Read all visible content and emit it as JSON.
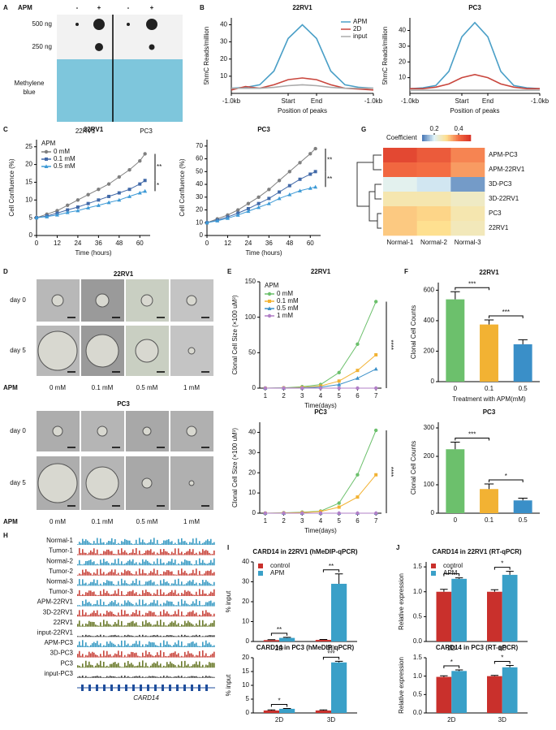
{
  "panel_labels": [
    "A",
    "B",
    "C",
    "D",
    "E",
    "F",
    "G",
    "H",
    "I",
    "J"
  ],
  "panel_a": {
    "treatment_label": "APM",
    "signs": [
      "-",
      "+",
      "-",
      "+"
    ],
    "amounts": [
      "500 ng",
      "250 ng"
    ],
    "stain_label_lines": [
      "Methylene",
      "blue"
    ],
    "cell_lines": [
      "22RV1",
      "PC3"
    ]
  },
  "panel_d": {
    "cell_lines": [
      "22RV1",
      "PC3"
    ],
    "days": [
      "day 0",
      "day 5"
    ],
    "treatment_label": "APM",
    "doses": [
      "0 mM",
      "0.1 mM",
      "0.5 mM",
      "1 mM"
    ]
  },
  "panel_h": {
    "tracks": [
      "Normal-1",
      "Tumor-1",
      "Normal-2",
      "Tumor-2",
      "Normal-3",
      "Tumor-3",
      "APM-22RV1",
      "3D-22RV1",
      "22RV1",
      "input-22RV1",
      "APM-PC3",
      "3D-PC3",
      "PC3",
      "input-PC3"
    ],
    "gene": "CARD14"
  },
  "chart_data": [
    {
      "type": "line",
      "title": "22RV1",
      "x": [
        0,
        10,
        20,
        30,
        40,
        50,
        60,
        70,
        80,
        90,
        100
      ],
      "xlim": [
        0,
        100
      ],
      "xticks": [
        {
          "value": 0,
          "label": "-1.0kb"
        },
        {
          "value": 40,
          "label": "Start"
        },
        {
          "value": 60,
          "label": "End"
        },
        {
          "value": 100,
          "label": "-1.0kb"
        }
      ],
      "ylim": [
        0,
        44
      ],
      "yticks": [
        10,
        20,
        30,
        40
      ],
      "xlabel": "Position of peaks",
      "ylabel": "5hmC Reads/million",
      "legend": "upper right",
      "series": [
        {
          "name": "APM",
          "color": "#4a9fc7",
          "values": [
            3,
            3.5,
            5,
            13,
            32,
            40,
            32,
            13,
            5,
            3.5,
            3
          ]
        },
        {
          "name": "2D",
          "color": "#c9463d",
          "values": [
            2,
            4,
            3,
            5,
            8,
            9,
            8,
            5,
            3,
            2.5,
            2
          ]
        },
        {
          "name": "input",
          "color": "#aaaaaa",
          "values": [
            3,
            3,
            3,
            3.5,
            4.5,
            5,
            4.5,
            3.5,
            3,
            3,
            3
          ]
        }
      ]
    },
    {
      "type": "line",
      "title": "PC3",
      "x": [
        0,
        10,
        20,
        30,
        40,
        50,
        60,
        70,
        80,
        90,
        100
      ],
      "xlim": [
        0,
        100
      ],
      "xticks": [
        {
          "value": 0,
          "label": "-1.0kb"
        },
        {
          "value": 40,
          "label": "Start"
        },
        {
          "value": 60,
          "label": "End"
        },
        {
          "value": 100,
          "label": "-1.0kb"
        }
      ],
      "ylim": [
        0,
        48
      ],
      "yticks": [
        10,
        20,
        30,
        40
      ],
      "xlabel": "Position of peaks",
      "ylabel": "5hmC Reads/million",
      "series": [
        {
          "color": "#4a9fc7",
          "values": [
            3,
            3.5,
            5,
            14,
            36,
            45,
            36,
            14,
            5,
            3.5,
            3
          ]
        },
        {
          "color": "#c9463d",
          "values": [
            3,
            3,
            4,
            6,
            10,
            12,
            10,
            6,
            4,
            3,
            3
          ]
        },
        {
          "color": "#aaaaaa",
          "values": [
            2,
            2,
            2,
            2,
            2,
            2,
            2,
            2,
            2,
            2,
            2
          ]
        }
      ]
    },
    {
      "type": "line",
      "title": "22RV1",
      "x": [
        0,
        6,
        12,
        18,
        24,
        30,
        36,
        42,
        48,
        54,
        60,
        63
      ],
      "xlim": [
        0,
        66
      ],
      "xticks": [
        0,
        12,
        24,
        36,
        48,
        60
      ],
      "ylim": [
        0,
        27
      ],
      "yticks": [
        0,
        5,
        10,
        15,
        20,
        25
      ],
      "xlabel": "Time (hours)",
      "ylabel": "Cell Confluence (%)",
      "legend": "upper left",
      "legend_title": "APM",
      "markers": true,
      "annotations": [
        "**",
        "*"
      ],
      "series": [
        {
          "name": "0 mM",
          "color": "#7f7f7f",
          "marker": "circle",
          "values": [
            5,
            6,
            7,
            8.5,
            10,
            11.5,
            13,
            14.5,
            16.5,
            18.5,
            21,
            23
          ]
        },
        {
          "name": "0.1 mM",
          "color": "#4169a8",
          "marker": "square",
          "values": [
            5,
            5.5,
            6.3,
            7.2,
            8,
            9,
            10,
            11,
            12,
            13,
            14.5,
            15.5
          ]
        },
        {
          "name": "0.5 mM",
          "color": "#3d9ad6",
          "marker": "triangle",
          "values": [
            5,
            5.3,
            5.8,
            6.5,
            7,
            7.8,
            8.5,
            9.3,
            10,
            11,
            12,
            12.5
          ]
        }
      ]
    },
    {
      "type": "line",
      "title": "PC3",
      "x": [
        0,
        6,
        12,
        18,
        24,
        30,
        36,
        42,
        48,
        54,
        60,
        63
      ],
      "xlim": [
        0,
        66
      ],
      "xticks": [
        0,
        12,
        24,
        36,
        48,
        60
      ],
      "ylim": [
        0,
        75
      ],
      "yticks": [
        0,
        10,
        20,
        30,
        40,
        50,
        60,
        70
      ],
      "xlabel": "Time (hours)",
      "ylabel": "Cell Confluence (%)",
      "markers": true,
      "annotations": [
        "**",
        "**"
      ],
      "series": [
        {
          "color": "#7f7f7f",
          "marker": "circle",
          "values": [
            10,
            13,
            16,
            20,
            25,
            30,
            36,
            43,
            50,
            57,
            64,
            68
          ]
        },
        {
          "color": "#4169a8",
          "marker": "square",
          "values": [
            10,
            12,
            14.5,
            17.5,
            21,
            25,
            29,
            34,
            39,
            44,
            48,
            50
          ]
        },
        {
          "color": "#3d9ad6",
          "marker": "triangle",
          "values": [
            10,
            11.5,
            13.5,
            16,
            19,
            22,
            25,
            29,
            32,
            35,
            37,
            38
          ]
        }
      ]
    },
    {
      "type": "heatmap",
      "colorbar_label": "Coefficient",
      "clim": [
        0.1,
        0.5
      ],
      "colorbar_ticks": [
        0.2,
        0.4
      ],
      "colors": [
        "#4575b4",
        "#e0f3f8",
        "#fee090",
        "#f46d43",
        "#d73027"
      ],
      "rows": [
        "APM-PC3",
        "APM-22RV1",
        "3D-PC3",
        "3D-22RV1",
        "PC3",
        "22RV1"
      ],
      "columns": [
        "Normal-1",
        "Normal-2",
        "Normal-3"
      ],
      "values": [
        [
          0.46,
          0.43,
          0.38
        ],
        [
          0.41,
          0.4,
          0.36
        ],
        [
          0.21,
          0.19,
          0.13
        ],
        [
          0.27,
          0.27,
          0.25
        ],
        [
          0.32,
          0.31,
          0.27
        ],
        [
          0.32,
          0.3,
          0.26
        ]
      ]
    },
    {
      "type": "line",
      "title": "22RV1",
      "x": [
        1,
        2,
        3,
        4,
        5,
        6,
        7
      ],
      "xlim": [
        0.7,
        7.3
      ],
      "xticks": [
        1,
        2,
        3,
        4,
        5,
        6,
        7
      ],
      "ylim": [
        0,
        150
      ],
      "yticks": [
        0,
        50,
        100,
        150
      ],
      "xlabel": "Time(days)",
      "ylabel": "Clonal Cell Size (×100 uM³)",
      "legend": "upper left",
      "legend_title": "APM",
      "markers": true,
      "annotations": [
        "****"
      ],
      "series": [
        {
          "name": "0 mM",
          "color": "#6cc06c",
          "marker": "circle",
          "values": [
            0,
            0.5,
            2,
            5,
            22,
            62,
            122
          ]
        },
        {
          "name": "0.1 mM",
          "color": "#f2b233",
          "marker": "square",
          "values": [
            0,
            0.3,
            1,
            3,
            10,
            25,
            47
          ]
        },
        {
          "name": "0.5 mM",
          "color": "#3a8fc8",
          "marker": "triangle",
          "values": [
            0,
            0.2,
            0.5,
            1.5,
            5,
            14,
            27
          ]
        },
        {
          "name": "1 mM",
          "color": "#b17fc7",
          "marker": "circle",
          "values": [
            0,
            0,
            0,
            0,
            0,
            0,
            0
          ]
        }
      ]
    },
    {
      "type": "line",
      "title": "PC3",
      "x": [
        1,
        2,
        3,
        4,
        5,
        6,
        7
      ],
      "xlim": [
        0.7,
        7.3
      ],
      "xticks": [
        1,
        2,
        3,
        4,
        5,
        6,
        7
      ],
      "ylim": [
        0,
        45
      ],
      "yticks": [
        0,
        10,
        20,
        30,
        40
      ],
      "xlabel": "Time(days)",
      "ylabel": "Clonal Cell Size (×100 uM³)",
      "markers": true,
      "annotations": [
        "****"
      ],
      "series": [
        {
          "color": "#6cc06c",
          "marker": "circle",
          "values": [
            0,
            0.2,
            0.5,
            1,
            5,
            19,
            41
          ]
        },
        {
          "color": "#f2b233",
          "marker": "square",
          "values": [
            0,
            0.1,
            0.3,
            0.8,
            3,
            8,
            19
          ]
        },
        {
          "color": "#3a8fc8",
          "marker": "triangle",
          "values": [
            0,
            0,
            0,
            0,
            0,
            0,
            0
          ]
        },
        {
          "color": "#b17fc7",
          "marker": "circle",
          "values": [
            0,
            0,
            0,
            0,
            0,
            0,
            0
          ]
        }
      ]
    },
    {
      "type": "bar",
      "title": "22RV1",
      "categories": [
        "0",
        "0.1",
        "0.5"
      ],
      "values": [
        540,
        375,
        245
      ],
      "errors": [
        50,
        30,
        30
      ],
      "colors": [
        "#6cc06c",
        "#f2b233",
        "#3a8fc8"
      ],
      "ylim": [
        0,
        650
      ],
      "yticks": [
        0,
        200,
        400,
        600
      ],
      "ylabel": "Clonal Cell Counts",
      "xlabel": "Treatment with APM(mM)",
      "annotations": [
        "***",
        "***"
      ]
    },
    {
      "type": "bar",
      "title": "PC3",
      "categories": [
        "0",
        "0.1",
        "0.5"
      ],
      "values": [
        225,
        85,
        45
      ],
      "errors": [
        25,
        18,
        8
      ],
      "colors": [
        "#6cc06c",
        "#f2b233",
        "#3a8fc8"
      ],
      "ylim": [
        0,
        320
      ],
      "yticks": [
        0,
        100,
        200,
        300
      ],
      "ylabel": "Clonal Cell Counts",
      "annotations": [
        "***",
        "*"
      ]
    },
    {
      "type": "bar",
      "title": "CARD14 in 22RV1 (hMeDIP-qPCR)",
      "categories": [
        "2D",
        "3D"
      ],
      "ylim": [
        0,
        40
      ],
      "yticks": [
        0,
        10,
        20,
        30,
        40
      ],
      "ylabel": "% input",
      "legend": "upper left",
      "annotations": [
        "**",
        "**"
      ],
      "series": [
        {
          "name": "control",
          "color": "#c9302c",
          "values": [
            0.7,
            0.8
          ],
          "errors": [
            0.2,
            0.2
          ]
        },
        {
          "name": "APM",
          "color": "#3aa0c8",
          "values": [
            1.8,
            29
          ],
          "errors": [
            0.3,
            5
          ]
        }
      ]
    },
    {
      "type": "bar",
      "title": "CARD14 in PC3 (hMeDIP-qPCR)",
      "categories": [
        "2D",
        "3D"
      ],
      "ylim": [
        0,
        20
      ],
      "yticks": [
        0,
        5,
        10,
        15,
        20
      ],
      "ylabel": "% input",
      "annotations": [
        "*",
        "***"
      ],
      "series": [
        {
          "color": "#c9302c",
          "values": [
            0.9,
            0.9
          ],
          "errors": [
            0.2,
            0.2
          ]
        },
        {
          "color": "#3aa0c8",
          "values": [
            1.5,
            18.3
          ],
          "errors": [
            0.1,
            0.4
          ]
        }
      ]
    },
    {
      "type": "bar",
      "title": "CARD14 in 22RV1 (RT-qPCR)",
      "categories": [
        "2D",
        "3D"
      ],
      "ylim": [
        0,
        1.6
      ],
      "yticks": [
        {
          "value": 0,
          "label": "0.0"
        },
        0.5,
        {
          "value": 1,
          "label": "1.0"
        },
        1.5
      ],
      "ylabel": "Relative expression",
      "legend": "upper left",
      "annotations": [
        "*",
        "*"
      ],
      "series": [
        {
          "name": "control",
          "color": "#c9302c",
          "values": [
            1,
            1
          ],
          "errors": [
            0.05,
            0.04
          ]
        },
        {
          "name": "APM",
          "color": "#3aa0c8",
          "values": [
            1.26,
            1.34
          ],
          "errors": [
            0.02,
            0.07
          ]
        }
      ]
    },
    {
      "type": "bar",
      "title": "CARD14 in PC3 (RT-qPCR)",
      "categories": [
        "2D",
        "3D"
      ],
      "ylim": [
        0,
        1.5
      ],
      "yticks": [
        {
          "value": 0,
          "label": "0.0"
        },
        0.5,
        {
          "value": 1,
          "label": "1.0"
        },
        1.5
      ],
      "ylabel": "Relative expression",
      "annotations": [
        "*",
        "*"
      ],
      "series": [
        {
          "color": "#c9302c",
          "values": [
            0.98,
            1
          ],
          "errors": [
            0.03,
            0.02
          ]
        },
        {
          "color": "#3aa0c8",
          "values": [
            1.14,
            1.24
          ],
          "errors": [
            0.03,
            0.05
          ]
        }
      ]
    }
  ]
}
